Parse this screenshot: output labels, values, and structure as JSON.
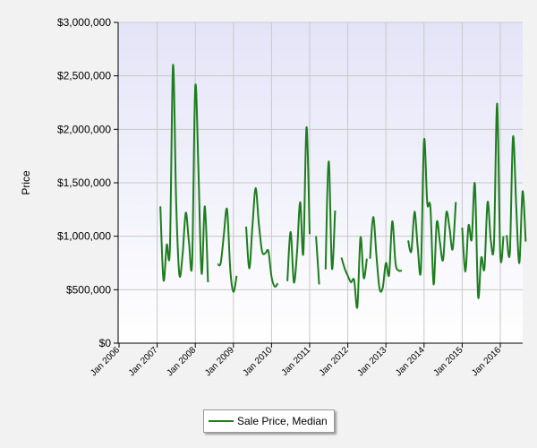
{
  "chart_data": {
    "type": "line",
    "title": "",
    "xlabel": "",
    "ylabel": "Price",
    "ylim": [
      0,
      3000000
    ],
    "yticks": [
      "$0",
      "$500,000",
      "$1,000,000",
      "$1,500,000",
      "$2,000,000",
      "$2,500,000",
      "$3,000,000"
    ],
    "ytick_values": [
      0,
      500000,
      1000000,
      1500000,
      2000000,
      2500000,
      3000000
    ],
    "xlim": [
      "2006-01",
      "2016-05"
    ],
    "xticks": [
      "Jan 2006",
      "Jan 2007",
      "Jan 2008",
      "Jan 2009",
      "Jan 2010",
      "Jan 2011",
      "Jan 2012",
      "Jan 2013",
      "Jan 2014",
      "Jan 2015",
      "Jan 2016"
    ],
    "xtick_values": [
      "2006-01",
      "2007-01",
      "2008-01",
      "2009-01",
      "2010-01",
      "2011-01",
      "2012-01",
      "2013-01",
      "2014-01",
      "2015-01",
      "2016-01"
    ],
    "grid": true,
    "legend_position": "bottom-center",
    "series": [
      {
        "name": "Sale Price, Median",
        "color": "#1e7d1e",
        "segments": [
          [
            [
              "2007-02",
              1280000
            ],
            [
              "2007-03",
              590000
            ],
            [
              "2007-04",
              920000
            ],
            [
              "2007-05",
              880000
            ],
            [
              "2007-06",
              2600000
            ],
            [
              "2007-07",
              1300000
            ],
            [
              "2007-08",
              640000
            ],
            [
              "2007-09",
              830000
            ],
            [
              "2007-10",
              1220000
            ],
            [
              "2007-11",
              950000
            ],
            [
              "2007-12",
              760000
            ],
            [
              "2008-01",
              2400000
            ],
            [
              "2008-02",
              1600000
            ],
            [
              "2008-03",
              650000
            ],
            [
              "2008-04",
              1280000
            ],
            [
              "2008-05",
              570000
            ]
          ],
          [
            [
              "2008-08",
              740000
            ],
            [
              "2008-09",
              750000
            ],
            [
              "2008-10",
              1020000
            ],
            [
              "2008-11",
              1250000
            ],
            [
              "2008-12",
              690000
            ],
            [
              "2009-01",
              480000
            ],
            [
              "2009-02",
              630000
            ]
          ],
          [
            [
              "2009-05",
              1090000
            ],
            [
              "2009-06",
              700000
            ],
            [
              "2009-07",
              1100000
            ],
            [
              "2009-08",
              1450000
            ],
            [
              "2009-09",
              1120000
            ],
            [
              "2009-10",
              860000
            ],
            [
              "2009-11",
              840000
            ],
            [
              "2009-12",
              860000
            ],
            [
              "2010-01",
              620000
            ],
            [
              "2010-02",
              530000
            ],
            [
              "2010-03",
              560000
            ]
          ],
          [
            [
              "2010-06",
              580000
            ],
            [
              "2010-07",
              1040000
            ],
            [
              "2010-08",
              570000
            ],
            [
              "2010-09",
              840000
            ],
            [
              "2010-10",
              1320000
            ],
            [
              "2010-11",
              840000
            ],
            [
              "2010-12",
              2020000
            ],
            [
              "2011-01",
              1020000
            ]
          ],
          [
            [
              "2011-03",
              1000000
            ],
            [
              "2011-04",
              550000
            ]
          ],
          [
            [
              "2011-06",
              690000
            ],
            [
              "2011-07",
              1700000
            ],
            [
              "2011-08",
              700000
            ],
            [
              "2011-09",
              1240000
            ]
          ],
          [
            [
              "2011-11",
              800000
            ],
            [
              "2011-12",
              700000
            ],
            [
              "2012-01",
              630000
            ],
            [
              "2012-02",
              570000
            ],
            [
              "2012-03",
              590000
            ],
            [
              "2012-04",
              340000
            ],
            [
              "2012-05",
              990000
            ],
            [
              "2012-06",
              610000
            ],
            [
              "2012-07",
              790000
            ]
          ],
          [
            [
              "2012-08",
              790000
            ],
            [
              "2012-09",
              1180000
            ],
            [
              "2012-10",
              820000
            ],
            [
              "2012-11",
              510000
            ],
            [
              "2012-12",
              520000
            ],
            [
              "2013-01",
              750000
            ],
            [
              "2013-02",
              640000
            ],
            [
              "2013-03",
              1140000
            ],
            [
              "2013-04",
              750000
            ],
            [
              "2013-05",
              680000
            ],
            [
              "2013-06",
              680000
            ]
          ],
          [
            [
              "2013-08",
              960000
            ],
            [
              "2013-09",
              860000
            ],
            [
              "2013-10",
              1230000
            ],
            [
              "2013-11",
              900000
            ],
            [
              "2013-12",
              690000
            ],
            [
              "2014-01",
              1900000
            ],
            [
              "2014-02",
              1310000
            ],
            [
              "2014-03",
              1270000
            ],
            [
              "2014-04",
              550000
            ],
            [
              "2014-05",
              1130000
            ],
            [
              "2014-06",
              940000
            ],
            [
              "2014-07",
              780000
            ],
            [
              "2014-08",
              1220000
            ],
            [
              "2014-09",
              1080000
            ],
            [
              "2014-10",
              880000
            ],
            [
              "2014-11",
              1320000
            ]
          ],
          [
            [
              "2015-01",
              1080000
            ],
            [
              "2015-02",
              670000
            ],
            [
              "2015-03",
              1100000
            ],
            [
              "2015-04",
              970000
            ],
            [
              "2015-05",
              1490000
            ],
            [
              "2015-06",
              440000
            ],
            [
              "2015-07",
              800000
            ],
            [
              "2015-08",
              700000
            ],
            [
              "2015-09",
              1320000
            ],
            [
              "2015-10",
              960000
            ],
            [
              "2015-11",
              930000
            ],
            [
              "2015-12",
              2240000
            ],
            [
              "2016-01",
              820000
            ],
            [
              "2016-02",
              1000000
            ]
          ],
          [
            [
              "2016-03",
              1010000
            ],
            [
              "2016-04",
              850000
            ],
            [
              "2016-05",
              1930000
            ],
            [
              "2016-06",
              1280000
            ],
            [
              "2016-07",
              750000
            ],
            [
              "2016-08",
              1420000
            ],
            [
              "2016-09",
              950000
            ]
          ]
        ]
      }
    ]
  },
  "legend": {
    "label": "Sale Price, Median"
  }
}
